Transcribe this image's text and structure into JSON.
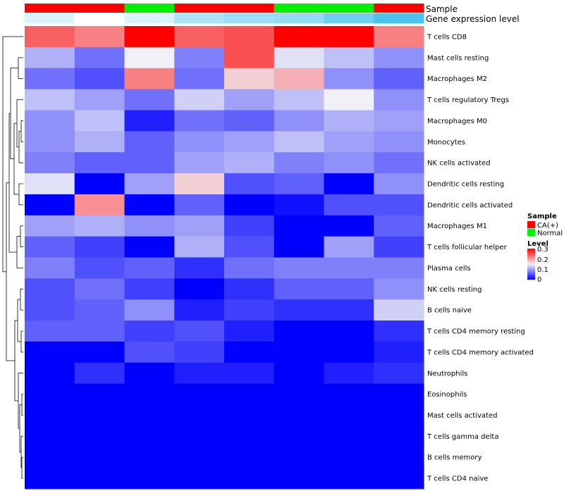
{
  "chart_data": {
    "type": "heatmap",
    "annotation_labels": [
      "Sample",
      "Gene expression level"
    ],
    "sample_groups": [
      "CA(+)",
      "CA(+)",
      "Normal",
      "CA(+)",
      "CA(+)",
      "Normal",
      "Normal",
      "CA(+)"
    ],
    "expression_level": [
      0.2,
      0.0,
      0.2,
      0.45,
      0.55,
      0.6,
      0.8,
      1.0
    ],
    "rows": [
      "T cells CD8",
      "Mast cells resting",
      "Macrophages M2",
      "T cells regulatory  Tregs",
      "Macrophages M0",
      "Monocytes",
      "NK cells activated",
      "Dendritic cells resting",
      "Dendritic cells activated",
      "Macrophages M1",
      "T cells follicular helper",
      "Plasma cells",
      "NK cells resting",
      "B cells naive",
      "T cells CD4 memory resting",
      "T cells CD4 memory activated",
      "Neutrophils",
      "Eosinophils",
      "Mast cells activated",
      "T cells gamma delta",
      "B cells memory",
      "T cells CD4 naive"
    ],
    "values": [
      [
        0.24,
        0.22,
        0.3,
        0.24,
        0.25,
        0.3,
        0.3,
        0.22
      ],
      [
        0.11,
        0.07,
        0.15,
        0.08,
        0.25,
        0.14,
        0.12,
        0.09
      ],
      [
        0.07,
        0.05,
        0.22,
        0.07,
        0.17,
        0.19,
        0.09,
        0.06
      ],
      [
        0.12,
        0.1,
        0.07,
        0.13,
        0.1,
        0.12,
        0.15,
        0.09
      ],
      [
        0.09,
        0.12,
        0.02,
        0.07,
        0.06,
        0.09,
        0.11,
        0.1
      ],
      [
        0.09,
        0.11,
        0.06,
        0.09,
        0.1,
        0.12,
        0.1,
        0.09
      ],
      [
        0.08,
        0.06,
        0.06,
        0.1,
        0.11,
        0.08,
        0.09,
        0.07
      ],
      [
        0.14,
        0.0,
        0.1,
        0.17,
        0.05,
        0.06,
        0.0,
        0.09
      ],
      [
        0.0,
        0.21,
        0.0,
        0.06,
        0.0,
        0.01,
        0.05,
        0.05
      ],
      [
        0.1,
        0.11,
        0.09,
        0.1,
        0.04,
        0.0,
        0.0,
        0.06
      ],
      [
        0.06,
        0.04,
        0.0,
        0.11,
        0.05,
        0.0,
        0.1,
        0.04
      ],
      [
        0.08,
        0.05,
        0.06,
        0.03,
        0.07,
        0.08,
        0.08,
        0.08
      ],
      [
        0.05,
        0.07,
        0.04,
        0.0,
        0.03,
        0.06,
        0.06,
        0.09
      ],
      [
        0.05,
        0.06,
        0.09,
        0.02,
        0.04,
        0.03,
        0.03,
        0.13
      ],
      [
        0.06,
        0.06,
        0.04,
        0.05,
        0.02,
        0.0,
        0.0,
        0.03
      ],
      [
        0.0,
        0.0,
        0.05,
        0.04,
        0.0,
        0.0,
        0.0,
        0.02
      ],
      [
        0.0,
        0.03,
        0.0,
        0.02,
        0.02,
        0.0,
        0.02,
        0.03
      ],
      [
        0.0,
        0.0,
        0.0,
        0.0,
        0.0,
        0.0,
        0.0,
        0.0
      ],
      [
        0.0,
        0.0,
        0.0,
        0.0,
        0.0,
        0.0,
        0.0,
        0.0
      ],
      [
        0.0,
        0.0,
        0.0,
        0.0,
        0.0,
        0.0,
        0.0,
        0.0
      ],
      [
        0.0,
        0.0,
        0.0,
        0.0,
        0.0,
        0.0,
        0.0,
        0.0
      ],
      [
        0.0,
        0.0,
        0.0,
        0.0,
        0.0,
        0.0,
        0.0,
        0.0
      ]
    ],
    "value_range": [
      0,
      0.3
    ],
    "legend": {
      "sample_title": "Sample",
      "sample_entries": [
        {
          "label": "CA(+)",
          "color": "#ff0000"
        },
        {
          "label": "Normal",
          "color": "#00ee00"
        }
      ],
      "level_title": "Level",
      "level_ticks": [
        "0.3",
        "0.2",
        "0.1",
        "0"
      ]
    },
    "colors": {
      "high": "#ff0000",
      "mid": "#f0f0f6",
      "low": "#0000ff",
      "level_annot_low": "#ffffff",
      "level_annot_high": "#4cc3ee"
    },
    "row_dendrogram": true
  }
}
